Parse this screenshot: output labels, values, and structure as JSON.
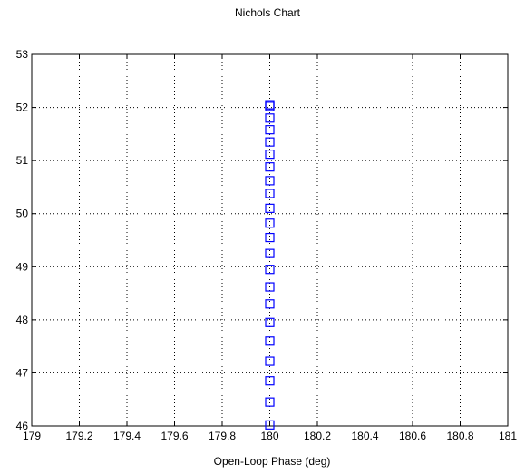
{
  "chart_data": {
    "type": "scatter",
    "title": "Nichols Chart",
    "xlabel": "Open-Loop Phase (deg)",
    "ylabel": "",
    "xlim": [
      179,
      181
    ],
    "ylim": [
      46,
      53
    ],
    "xticks": [
      "179",
      "179.2",
      "179.4",
      "179.6",
      "179.8",
      "180",
      "180.2",
      "180.4",
      "180.6",
      "180.8",
      "181"
    ],
    "yticks": [
      "46",
      "47",
      "48",
      "49",
      "50",
      "51",
      "52",
      "53"
    ],
    "grid": true,
    "marker": "square",
    "series": [
      {
        "color": "#0000ff",
        "x": [
          180,
          180,
          180,
          180,
          180,
          180,
          180,
          180,
          180,
          180,
          180,
          180,
          180,
          180,
          180,
          180,
          180,
          180,
          180,
          180,
          180,
          180,
          180
        ],
        "y": [
          46.02,
          46.45,
          46.85,
          47.22,
          47.6,
          47.95,
          48.3,
          48.62,
          48.95,
          49.25,
          49.55,
          49.82,
          50.1,
          50.38,
          50.62,
          50.88,
          51.12,
          51.35,
          51.58,
          51.8,
          52.02,
          52.05,
          52.05
        ]
      }
    ]
  }
}
